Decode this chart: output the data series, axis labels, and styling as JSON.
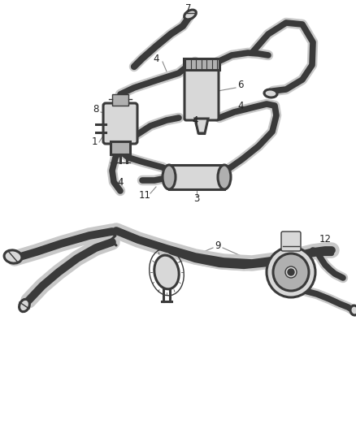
{
  "bg_color": "#ffffff",
  "lc": "#3a3a3a",
  "lc_light": "#888888",
  "lw_thick": 3.5,
  "lw_mid": 2.2,
  "lw_thin": 1.0,
  "fs": 8.5,
  "fc_gray": "#d8d8d8",
  "fc_dark": "#b0b0b0"
}
